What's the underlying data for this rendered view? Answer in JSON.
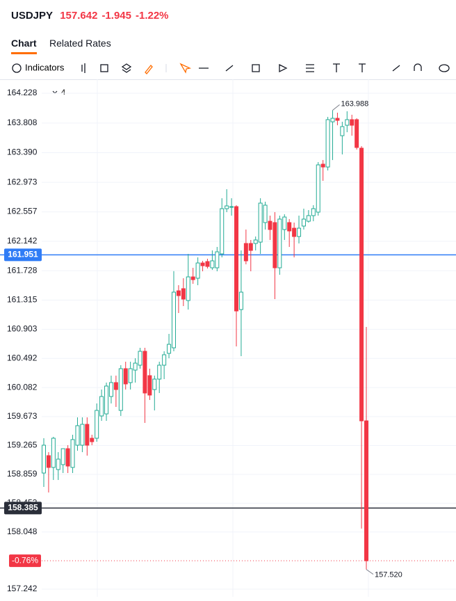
{
  "header": {
    "symbol": "USDJPY",
    "price": "157.642",
    "change": "-1.945",
    "change_pct": "-1.22%"
  },
  "tabs": [
    "Chart",
    "Related Rates"
  ],
  "toolbar": {
    "indicators": "Indicators"
  },
  "chart_data": {
    "type": "candlestick",
    "interval_label": "4",
    "up_color": "#22ab94",
    "down_color": "#f23645",
    "ylim": [
      157.134,
      164.395
    ],
    "yticks": [
      164.228,
      163.808,
      {
        "value": 163.39,
        "label": "163.390"
      },
      162.973,
      162.557,
      162.142,
      161.728,
      161.315,
      160.903,
      160.492,
      160.082,
      159.673,
      159.265,
      158.859,
      158.453,
      158.048,
      157.242
    ],
    "grid": true,
    "open": [
      158.878,
      159.123,
      158.957,
      158.927,
      158.996,
      159.221,
      158.957,
      159.27,
      159.27,
      159.564,
      159.368,
      159.368,
      159.682,
      159.711,
      159.956,
      160.152,
      159.76,
      160.348,
      160.152,
      160.328,
      160.397,
      160.593,
      160.25,
      160.054,
      160.201,
      160.397,
      160.564,
      160.642,
      161.445,
      161.475,
      161.308,
      161.641,
      161.622,
      161.837,
      161.857,
      161.769,
      161.769,
      161.965,
      162.602,
      162.621,
      162.631,
      161.181,
      162.112,
      162.112,
      162.112,
      162.131,
      162.406,
      162.425,
      162.406,
      161.769,
      162.308,
      162.406,
      162.327,
      162.21,
      162.357,
      162.425,
      162.504,
      162.553,
      163.229,
      163.189,
      163.826,
      163.875,
      163.63,
      163.777,
      163.856,
      163.856,
      163.454,
      159.613
    ],
    "high": [
      159.368,
      159.172,
      159.388,
      159.172,
      159.221,
      159.27,
      159.417,
      159.662,
      159.662,
      159.662,
      159.417,
      159.858,
      160.054,
      160.152,
      160.25,
      160.25,
      160.397,
      160.446,
      160.446,
      160.495,
      160.642,
      160.642,
      160.348,
      160.25,
      160.446,
      160.593,
      160.838,
      161.722,
      161.524,
      161.622,
      161.965,
      161.769,
      161.916,
      161.867,
      161.896,
      162.014,
      162.063,
      162.749,
      162.876,
      162.749,
      162.651,
      162.014,
      162.308,
      162.161,
      162.21,
      162.749,
      162.7,
      162.504,
      162.553,
      162.504,
      162.523,
      162.455,
      162.406,
      162.504,
      162.602,
      162.582,
      162.651,
      163.258,
      163.287,
      163.895,
      163.988,
      163.954,
      163.826,
      163.974,
      163.925,
      163.875,
      163.483,
      160.936
    ],
    "low": [
      158.682,
      158.604,
      158.78,
      158.78,
      158.878,
      158.878,
      158.878,
      159.192,
      159.172,
      159.123,
      159.27,
      159.319,
      159.613,
      159.613,
      159.858,
      159.809,
      159.682,
      160.054,
      160.054,
      160.152,
      160.348,
      159.584,
      159.907,
      159.76,
      160.005,
      160.201,
      160.495,
      160.593,
      161.132,
      161.23,
      161.181,
      161.543,
      161.524,
      161.72,
      161.759,
      161.739,
      161.72,
      161.916,
      162.553,
      162.504,
      160.662,
      160.524,
      161.818,
      161.72,
      162.014,
      161.965,
      162.308,
      162.161,
      161.328,
      161.671,
      162.161,
      162.063,
      161.916,
      162.112,
      162.308,
      162.406,
      162.425,
      162.504,
      162.994,
      163.14,
      163.287,
      163.777,
      163.366,
      163.679,
      163.63,
      163.434,
      158.095,
      157.52
    ],
    "close": [
      159.27,
      158.957,
      159.368,
      159.074,
      159.221,
      158.976,
      159.349,
      159.545,
      159.564,
      159.27,
      159.319,
      159.76,
      159.956,
      160.103,
      160.152,
      160.054,
      160.348,
      160.133,
      160.348,
      160.426,
      160.593,
      160.005,
      159.976,
      160.201,
      160.397,
      160.544,
      160.691,
      161.426,
      161.377,
      161.328,
      161.641,
      161.602,
      161.837,
      161.798,
      161.788,
      161.867,
      161.994,
      162.602,
      162.641,
      162.631,
      161.161,
      161.426,
      161.867,
      162.014,
      162.161,
      162.68,
      162.651,
      162.308,
      161.769,
      162.455,
      162.484,
      162.288,
      162.21,
      162.327,
      162.455,
      162.504,
      162.602,
      163.219,
      163.189,
      163.856,
      163.875,
      163.846,
      163.758,
      163.856,
      163.777,
      163.464,
      159.613,
      157.642
    ],
    "high_label": "163.988",
    "low_label": "157.520",
    "change_label": "-0.76%",
    "price_lines": [
      {
        "value": 161.951,
        "label": "161.951",
        "color": "#2f7cf6"
      },
      {
        "value": 158.385,
        "label": "158.385",
        "color": "#2a2e39"
      }
    ]
  }
}
